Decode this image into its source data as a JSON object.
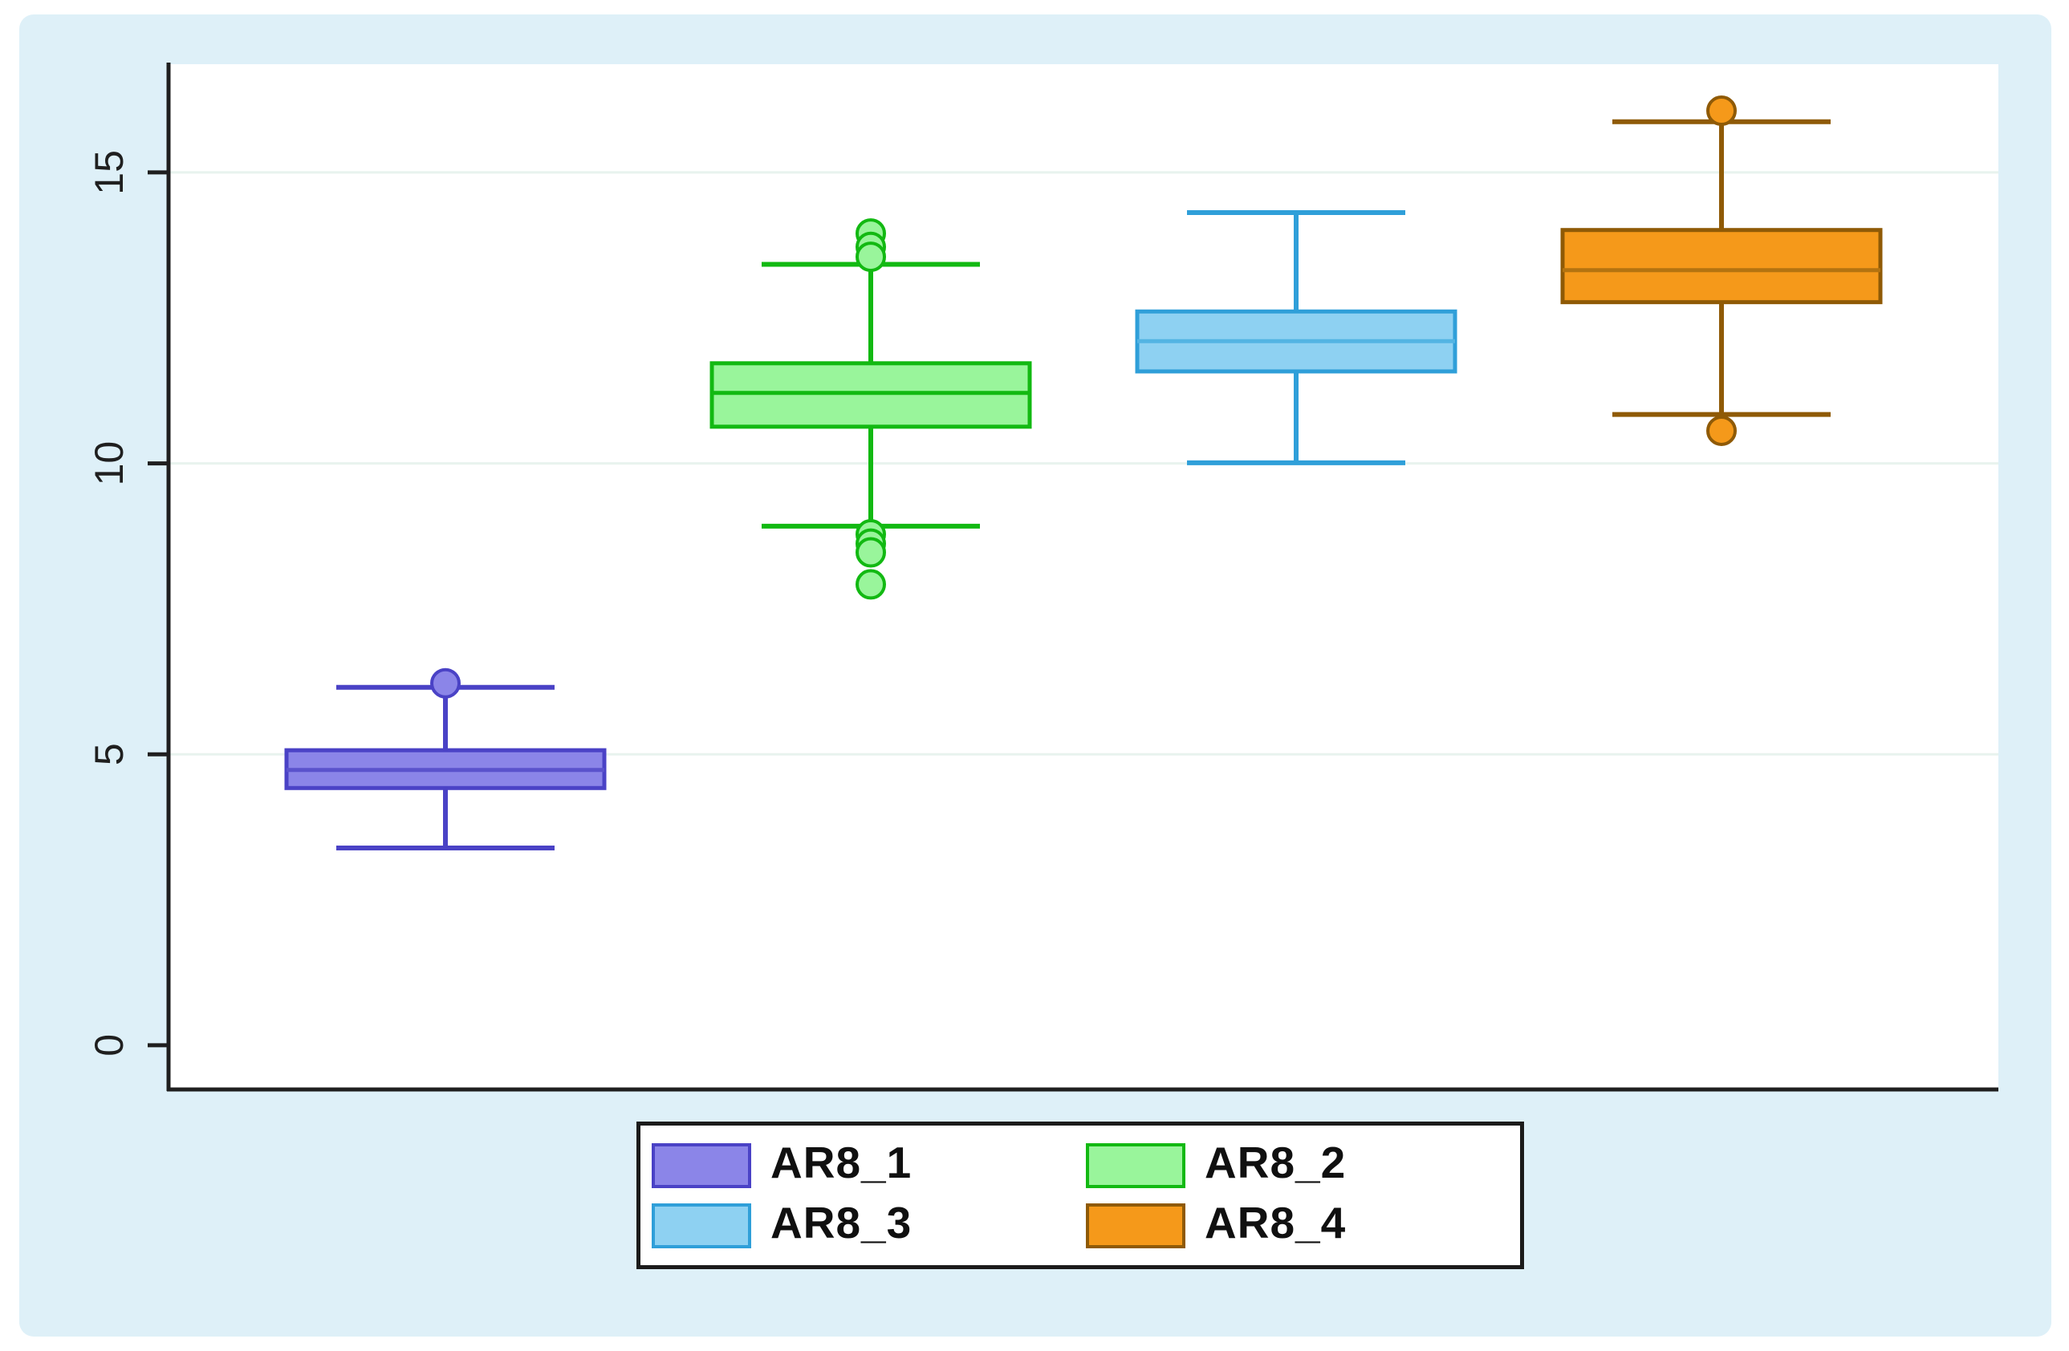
{
  "figure": {
    "page_background": "#ffffff",
    "panel_background": "#def0f8",
    "plot_background": "#ffffff",
    "grid_color": "#e8f3ee",
    "axis_color": "#1f1f1f",
    "tick_label_color": "#1f1f1f"
  },
  "chart_data": {
    "type": "boxplot",
    "title": "",
    "xlabel": "",
    "ylabel": "",
    "orientation": "vertical",
    "ylim": [
      -0.76,
      16.86
    ],
    "yticks": [
      0,
      5,
      10,
      15
    ],
    "grid": "horizontal gridlines at 5, 10, 15 (very faint), none at 0",
    "legend_position": "bottom-center boxed, 2x2 grid",
    "series": [
      {
        "name": "AR8_1",
        "fill": "#8b85e8",
        "stroke": "#4a42c6",
        "median_color": "#5a52cc",
        "whisker_low": 3.39,
        "q1": 4.42,
        "median": 4.73,
        "q3": 5.07,
        "whisker_high": 6.15,
        "outliers": [
          6.22
        ]
      },
      {
        "name": "AR8_2",
        "fill": "#99f59b",
        "stroke": "#12b912",
        "median_color": "#12b912",
        "whisker_low": 8.92,
        "q1": 10.63,
        "median": 11.21,
        "q3": 11.72,
        "whisker_high": 13.42,
        "outliers": [
          13.95,
          13.72,
          13.55,
          8.78,
          8.62,
          8.47,
          7.92
        ]
      },
      {
        "name": "AR8_3",
        "fill": "#8ed1f2",
        "stroke": "#2f9fd9",
        "median_color": "#53b4e3",
        "whisker_low": 10.01,
        "q1": 11.58,
        "median": 12.1,
        "q3": 12.61,
        "whisker_high": 14.31,
        "outliers": []
      },
      {
        "name": "AR8_4",
        "fill": "#f5991a",
        "stroke": "#8f5a06",
        "median_color": "#b37310",
        "whisker_low": 10.84,
        "q1": 12.77,
        "median": 13.32,
        "q3": 14.01,
        "whisker_high": 15.87,
        "outliers": [
          16.06,
          10.56
        ]
      }
    ]
  },
  "legend": {
    "items": [
      "AR8_1",
      "AR8_2",
      "AR8_3",
      "AR8_4"
    ]
  }
}
